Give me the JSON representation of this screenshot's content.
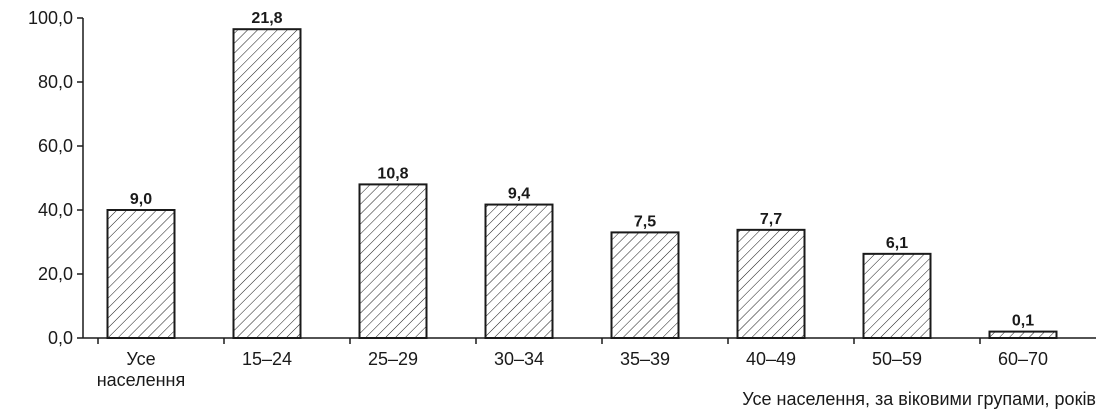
{
  "chart_data": {
    "type": "bar",
    "title": "",
    "xlabel": "Усе населення, за віковими групами, років",
    "ylabel": "",
    "ylim": [
      0,
      100
    ],
    "yticks": [
      "0,0",
      "20,0",
      "40,0",
      "60,0",
      "80,0",
      "100,0"
    ],
    "grid": false,
    "legend": "none",
    "bar_style": "diagonal-hatch",
    "categories": [
      [
        "Усе",
        "населення"
      ],
      [
        "15–24"
      ],
      [
        "25–29"
      ],
      [
        "30–34"
      ],
      [
        "35–39"
      ],
      [
        "40–49"
      ],
      [
        "50–59"
      ],
      [
        "60–70"
      ]
    ],
    "values": [
      40.0,
      96.5,
      48.0,
      41.7,
      33.0,
      33.8,
      26.3,
      2.0
    ],
    "data_labels": [
      "9,0",
      "21,8",
      "10,8",
      "9,4",
      "7,5",
      "7,7",
      "6,1",
      "0,1"
    ]
  }
}
